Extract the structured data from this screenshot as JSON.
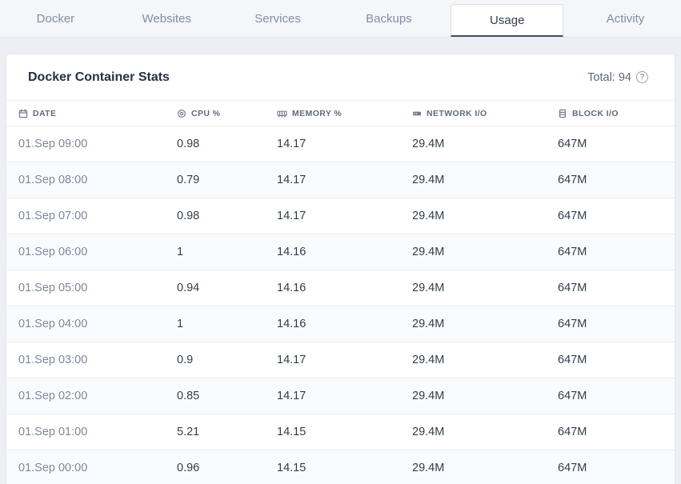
{
  "nav": {
    "tabs": [
      {
        "label": "Docker"
      },
      {
        "label": "Websites"
      },
      {
        "label": "Services"
      },
      {
        "label": "Backups"
      },
      {
        "label": "Usage"
      },
      {
        "label": "Activity"
      }
    ],
    "active": "Usage"
  },
  "card": {
    "title": "Docker Container Stats",
    "total_label": "Total: 94",
    "help_icon": "question-circle-icon"
  },
  "table": {
    "columns": [
      {
        "label": "DATE",
        "icon": "calendar-icon"
      },
      {
        "label": "CPU %",
        "icon": "cpu-icon"
      },
      {
        "label": "MEMORY %",
        "icon": "memory-icon"
      },
      {
        "label": "NETWORK I/O",
        "icon": "network-icon"
      },
      {
        "label": "BLOCK I/O",
        "icon": "block-icon"
      }
    ],
    "rows": [
      [
        "01.Sep 09:00",
        "0.98",
        "14.17",
        "29.4M",
        "647M"
      ],
      [
        "01.Sep 08:00",
        "0.79",
        "14.17",
        "29.4M",
        "647M"
      ],
      [
        "01.Sep 07:00",
        "0.98",
        "14.17",
        "29.4M",
        "647M"
      ],
      [
        "01.Sep 06:00",
        "1",
        "14.16",
        "29.4M",
        "647M"
      ],
      [
        "01.Sep 05:00",
        "0.94",
        "14.16",
        "29.4M",
        "647M"
      ],
      [
        "01.Sep 04:00",
        "1",
        "14.16",
        "29.4M",
        "647M"
      ],
      [
        "01.Sep 03:00",
        "0.9",
        "14.17",
        "29.4M",
        "647M"
      ],
      [
        "01.Sep 02:00",
        "0.85",
        "14.17",
        "29.4M",
        "647M"
      ],
      [
        "01.Sep 01:00",
        "5.21",
        "14.15",
        "29.4M",
        "647M"
      ],
      [
        "01.Sep 00:00",
        "0.96",
        "14.15",
        "29.4M",
        "647M"
      ]
    ]
  },
  "colors": {
    "page_background": "#edeff4",
    "active_tab_underline": "#454f5e",
    "row_alt_background": "#fafbfe",
    "muted_text": "#7d8899",
    "value_text": "#313c4a"
  }
}
